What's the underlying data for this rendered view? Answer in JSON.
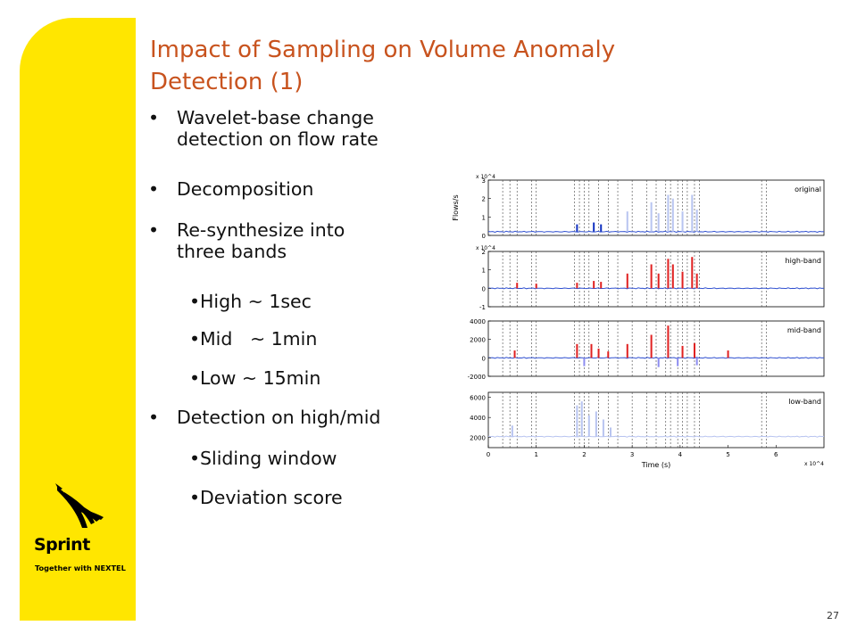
{
  "slide": {
    "title_line1": "Impact of Sampling on Volume Anomaly",
    "title_line2": "Detection (1)",
    "page_number": "27"
  },
  "bullets": [
    {
      "level": 1,
      "lines": [
        "Wavelet-base change",
        "detection on flow rate"
      ]
    },
    {
      "level": 1,
      "lines": [
        "Decomposition"
      ]
    },
    {
      "level": 1,
      "lines": [
        "Re-synthesize into",
        "three bands"
      ]
    },
    {
      "level": 2,
      "lines": [
        "High ~ 1sec"
      ]
    },
    {
      "level": 2,
      "lines": [
        "Mid   ~ 1min"
      ]
    },
    {
      "level": 2,
      "lines": [
        "Low ~ 15min"
      ]
    },
    {
      "level": 1,
      "lines": [
        "Detection on high/mid"
      ]
    },
    {
      "level": 2,
      "lines": [
        "Sliding window"
      ]
    },
    {
      "level": 2,
      "lines": [
        "Deviation score"
      ]
    }
  ],
  "logo": {
    "brand": "Sprint",
    "tagline": "Together with NEXTEL",
    "color": "#ffe600"
  },
  "chart_data": {
    "type": "line",
    "xlabel": "Time (s)",
    "x_multiplier": "x 10^4",
    "x_ticks": [
      "0",
      "1",
      "2",
      "3",
      "4",
      "5",
      "6"
    ],
    "xlim": [
      0,
      7
    ],
    "anomaly_markers_x": [
      0.3,
      0.45,
      0.6,
      0.9,
      1.0,
      1.8,
      1.9,
      2.0,
      2.1,
      2.3,
      2.5,
      2.7,
      3.0,
      3.3,
      3.5,
      3.7,
      3.8,
      3.95,
      4.05,
      4.15,
      4.3,
      4.4,
      5.7,
      5.8
    ],
    "panels": [
      {
        "label": "original",
        "ylabel": "Flows/s",
        "y_multiplier": "x 10^4",
        "y_ticks": [
          "0",
          "1",
          "2",
          "3"
        ],
        "ylim": [
          0,
          3
        ],
        "baseline": 0.2,
        "spikes": [
          {
            "x": 1.85,
            "y": 0.6,
            "color": "#1030c0"
          },
          {
            "x": 2.2,
            "y": 0.7,
            "color": "#1030c0"
          },
          {
            "x": 2.35,
            "y": 0.6,
            "color": "#1030c0"
          },
          {
            "x": 2.9,
            "y": 1.3,
            "color": "#b8c4f0"
          },
          {
            "x": 3.4,
            "y": 1.8,
            "color": "#b8c4f0"
          },
          {
            "x": 3.55,
            "y": 1.2,
            "color": "#b8c4f0"
          },
          {
            "x": 3.75,
            "y": 2.2,
            "color": "#b8c4f0"
          },
          {
            "x": 3.85,
            "y": 2.0,
            "color": "#b8c4f0"
          },
          {
            "x": 4.05,
            "y": 1.3,
            "color": "#b8c4f0"
          },
          {
            "x": 4.25,
            "y": 2.2,
            "color": "#b8c4f0"
          },
          {
            "x": 4.35,
            "y": 1.4,
            "color": "#b8c4f0"
          }
        ]
      },
      {
        "label": "high-band",
        "ylabel": "",
        "y_multiplier": "x 10^4",
        "y_ticks": [
          "-1",
          "0",
          "1",
          "2"
        ],
        "ylim": [
          -1,
          2
        ],
        "baseline": 0,
        "spikes": [
          {
            "x": 0.6,
            "y": 0.3,
            "color": "#e02020"
          },
          {
            "x": 1.0,
            "y": 0.25,
            "color": "#e02020"
          },
          {
            "x": 1.85,
            "y": 0.3,
            "color": "#e02020"
          },
          {
            "x": 2.2,
            "y": 0.4,
            "color": "#e02020"
          },
          {
            "x": 2.35,
            "y": 0.35,
            "color": "#e02020"
          },
          {
            "x": 2.9,
            "y": 0.8,
            "color": "#e02020"
          },
          {
            "x": 3.4,
            "y": 1.3,
            "color": "#e02020"
          },
          {
            "x": 3.55,
            "y": 0.8,
            "color": "#e02020"
          },
          {
            "x": 3.75,
            "y": 1.6,
            "color": "#e02020"
          },
          {
            "x": 3.85,
            "y": 1.3,
            "color": "#e02020"
          },
          {
            "x": 4.05,
            "y": 0.9,
            "color": "#e02020"
          },
          {
            "x": 4.25,
            "y": 1.7,
            "color": "#e02020"
          },
          {
            "x": 4.35,
            "y": 0.8,
            "color": "#e02020"
          }
        ]
      },
      {
        "label": "mid-band",
        "ylabel": "",
        "y_multiplier": "",
        "y_ticks": [
          "-2000",
          "0",
          "2000",
          "4000"
        ],
        "ylim": [
          -2000,
          4000
        ],
        "baseline": 0,
        "spikes": [
          {
            "x": 0.55,
            "y": 800,
            "color": "#e02020"
          },
          {
            "x": 1.85,
            "y": 1500,
            "color": "#e02020"
          },
          {
            "x": 2.0,
            "y": -900,
            "color": "#8c8cf0"
          },
          {
            "x": 2.15,
            "y": 1500,
            "color": "#e02020"
          },
          {
            "x": 2.3,
            "y": 1000,
            "color": "#e02020"
          },
          {
            "x": 2.5,
            "y": 700,
            "color": "#e02020"
          },
          {
            "x": 2.9,
            "y": 1500,
            "color": "#e02020"
          },
          {
            "x": 3.4,
            "y": 2500,
            "color": "#e02020"
          },
          {
            "x": 3.55,
            "y": -1000,
            "color": "#8c8cf0"
          },
          {
            "x": 3.75,
            "y": 3500,
            "color": "#e02020"
          },
          {
            "x": 3.95,
            "y": -900,
            "color": "#8c8cf0"
          },
          {
            "x": 4.05,
            "y": 1300,
            "color": "#e02020"
          },
          {
            "x": 4.3,
            "y": 1600,
            "color": "#e02020"
          },
          {
            "x": 4.35,
            "y": -800,
            "color": "#8c8cf0"
          },
          {
            "x": 5.0,
            "y": 800,
            "color": "#e02020"
          }
        ]
      },
      {
        "label": "low-band",
        "ylabel": "",
        "y_multiplier": "",
        "y_ticks": [
          "2000",
          "4000",
          "6000"
        ],
        "ylim": [
          1000,
          6500
        ],
        "baseline": 2100,
        "spikes": [
          {
            "x": 0.5,
            "y": 3200,
            "color": "#b8c4f0"
          },
          {
            "x": 1.85,
            "y": 5200,
            "color": "#b8c4f0"
          },
          {
            "x": 1.95,
            "y": 5600,
            "color": "#b8c4f0"
          },
          {
            "x": 2.1,
            "y": 4200,
            "color": "#b8c4f0"
          },
          {
            "x": 2.25,
            "y": 4600,
            "color": "#b8c4f0"
          },
          {
            "x": 2.4,
            "y": 3800,
            "color": "#b8c4f0"
          },
          {
            "x": 2.55,
            "y": 3000,
            "color": "#b8c4f0"
          }
        ]
      }
    ]
  }
}
